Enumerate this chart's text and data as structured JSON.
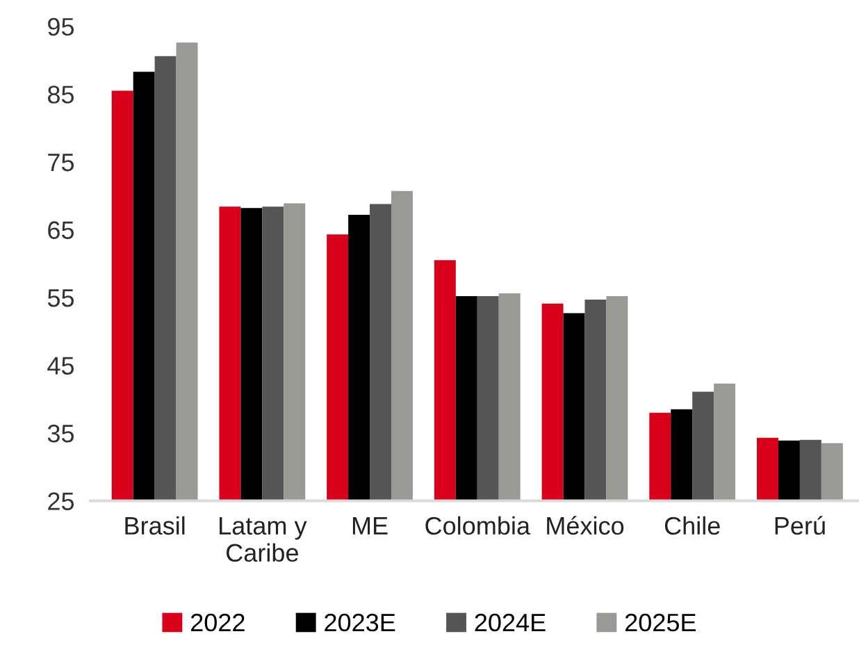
{
  "chart_data": {
    "type": "bar",
    "categories": [
      "Brasil",
      "Latam y\nCaribe",
      "ME",
      "Colombia",
      "México",
      "Chile",
      "Perú"
    ],
    "series": [
      {
        "name": "2022",
        "color": "#d9001b",
        "values": [
          85.5,
          68.4,
          64.3,
          60.5,
          54.1,
          38.0,
          34.3
        ]
      },
      {
        "name": "2023E",
        "color": "#000000",
        "values": [
          88.3,
          68.2,
          67.2,
          55.2,
          52.7,
          38.5,
          33.9
        ]
      },
      {
        "name": "2024E",
        "color": "#555555",
        "values": [
          90.6,
          68.4,
          68.8,
          55.2,
          54.7,
          41.1,
          34.0
        ]
      },
      {
        "name": "2025E",
        "color": "#999a96",
        "values": [
          92.6,
          68.9,
          70.7,
          55.6,
          55.2,
          42.3,
          33.5
        ]
      }
    ],
    "ylim": [
      25,
      95
    ],
    "yticks": [
      25,
      35,
      45,
      55,
      65,
      75,
      85,
      95
    ],
    "grid": false,
    "legend": "bottom"
  }
}
